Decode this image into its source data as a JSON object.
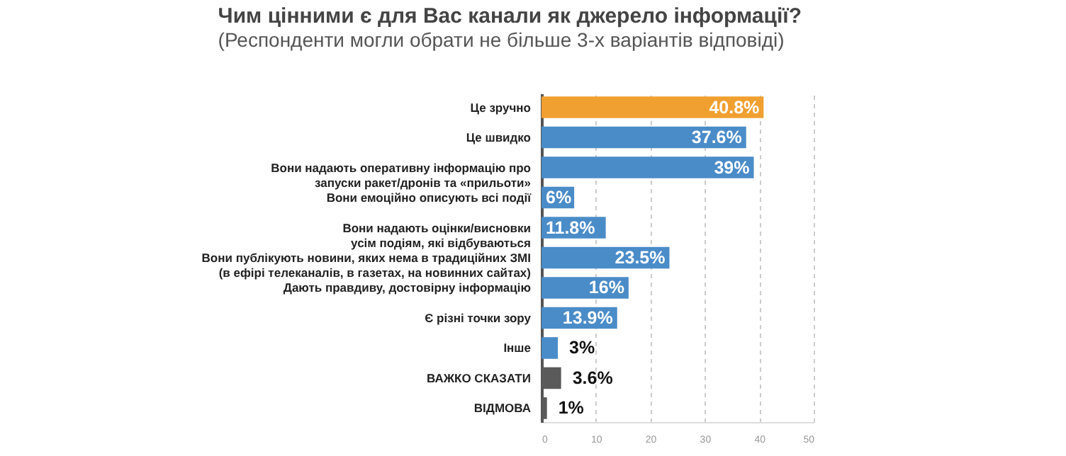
{
  "chart_data": {
    "type": "bar",
    "orientation": "horizontal",
    "title": "Чим цінними є для Вас канали як джерело інформації?",
    "subtitle": "(Респонденти могли обрати не більше 3-х варіантів відповіді)",
    "categories": [
      "Це зручно",
      "Це швидко",
      "Вони надають оперативну інформацію про\nзапуски ракет/дронів та «прильоти»",
      "Вони емоційно описують всі події",
      "Вони надають оцінки/висновки\nусім подіям, які відбуваються",
      "Вони публікують новини, яких нема в традиційних ЗМІ\n(в ефірі телеканалів, в газетах, на новинних сайтах)",
      "Дають правдиву, достовірну інформацію",
      "Є різні точки зору",
      "Інше",
      "ВАЖКО СКАЗАТИ",
      "ВІДМОВА"
    ],
    "values": [
      40.8,
      37.6,
      39,
      6,
      11.8,
      23.5,
      16,
      13.9,
      3,
      3.6,
      1
    ],
    "value_labels": [
      "40.8%",
      "37.6%",
      "39%",
      "6%",
      "11.8%",
      "23.5%",
      "16%",
      "13.9%",
      "3%",
      "3.6%",
      "1%"
    ],
    "colors": [
      "#f0a030",
      "#4a8cc8",
      "#4a8cc8",
      "#4a8cc8",
      "#4a8cc8",
      "#4a8cc8",
      "#4a8cc8",
      "#4a8cc8",
      "#4a8cc8",
      "#5a5a5a",
      "#5a5a5a"
    ],
    "xlim": [
      0,
      50
    ],
    "xticks": [
      0,
      10,
      20,
      30,
      40,
      50
    ],
    "grid": "x",
    "legend": false
  }
}
